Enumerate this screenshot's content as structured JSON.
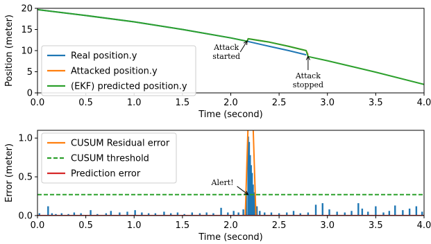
{
  "chart_data": [
    {
      "type": "line",
      "xlabel": "Time (second)",
      "ylabel": "Position (meter)",
      "xlim": [
        0.0,
        4.0
      ],
      "ylim": [
        0,
        20
      ],
      "x_ticks": [
        "0.0",
        "0.5",
        "1.0",
        "1.5",
        "2.0",
        "2.5",
        "3.0",
        "3.5",
        "4.0"
      ],
      "y_ticks": [
        "0",
        "5",
        "10",
        "15",
        "20"
      ],
      "grid": false,
      "legend_position": "lower-left",
      "series": [
        {
          "name": "Real position.y",
          "color": "#1f77b4",
          "x": [
            0.0,
            0.5,
            1.0,
            1.5,
            2.0,
            2.17,
            2.4,
            2.6,
            2.78
          ],
          "y": [
            19.7,
            18.3,
            16.8,
            15.0,
            13.0,
            12.2,
            11.0,
            10.0,
            9.0
          ]
        },
        {
          "name": "Attacked position.y",
          "color": "#ff7f0e",
          "x": [
            2.17,
            2.18,
            2.4,
            2.6,
            2.78,
            2.8
          ],
          "y": [
            12.2,
            12.8,
            12.0,
            11.0,
            10.0,
            9.0
          ]
        },
        {
          "name": "(EKF) predicted position.y",
          "color": "#2ca02c",
          "x": [
            0.0,
            0.5,
            1.0,
            1.5,
            2.0,
            2.17,
            2.18,
            2.4,
            2.6,
            2.78,
            2.8,
            3.0,
            3.5,
            4.0
          ],
          "y": [
            19.7,
            18.3,
            16.8,
            15.0,
            13.0,
            12.2,
            12.8,
            12.0,
            11.0,
            10.0,
            8.6,
            7.6,
            4.9,
            2.0
          ]
        }
      ],
      "annotations": [
        {
          "lines": [
            "Attack",
            "started"
          ],
          "x": 2.17,
          "y": 12.3
        },
        {
          "lines": [
            "Attack",
            "stopped"
          ],
          "x": 2.8,
          "y": 9.0
        }
      ]
    },
    {
      "type": "line",
      "xlabel": "Time (second)",
      "ylabel": "Error (meter)",
      "xlim": [
        0.0,
        4.0
      ],
      "ylim": [
        0,
        1.1
      ],
      "x_ticks": [
        "0.0",
        "0.5",
        "1.0",
        "1.5",
        "2.0",
        "2.5",
        "3.0",
        "3.5",
        "4.0"
      ],
      "y_ticks": [
        "0.0",
        "0.5",
        "1.0"
      ],
      "grid": false,
      "legend_position": "upper-left",
      "series": [
        {
          "name": "CUSUM Residual error",
          "color": "#ff7f0e",
          "x": [
            0.0,
            2.15,
            2.18,
            2.23,
            2.26,
            2.3,
            4.0
          ],
          "y": [
            0.0,
            0.0,
            1.2,
            1.2,
            0.0,
            0.0,
            0.0
          ]
        },
        {
          "name": "CUSUM threshold",
          "color": "#2ca02c",
          "style": "dashed",
          "x": [
            0.0,
            4.0
          ],
          "y": [
            0.27,
            0.27
          ]
        },
        {
          "name": "Prediction error",
          "color": "#d62728",
          "x": [
            0.0,
            4.0
          ],
          "y": [
            0.0,
            0.0
          ]
        }
      ],
      "error_bars": {
        "color": "#1f77b4",
        "x": [
          0.02,
          0.11,
          0.15,
          0.19,
          0.25,
          0.32,
          0.38,
          0.45,
          0.55,
          0.62,
          0.71,
          0.76,
          0.85,
          0.93,
          1.01,
          1.08,
          1.15,
          1.22,
          1.31,
          1.38,
          1.45,
          1.52,
          1.6,
          1.68,
          1.75,
          1.82,
          1.9,
          1.97,
          2.03,
          2.08,
          2.13,
          2.16,
          2.18,
          2.19,
          2.2,
          2.21,
          2.22,
          2.23,
          2.24,
          2.25,
          2.27,
          2.3,
          2.35,
          2.42,
          2.5,
          2.58,
          2.65,
          2.72,
          2.8,
          2.88,
          2.95,
          3.02,
          3.1,
          3.18,
          3.25,
          3.32,
          3.36,
          3.42,
          3.5,
          3.58,
          3.64,
          3.7,
          3.78,
          3.85,
          3.92,
          3.98
        ],
        "y": [
          0.03,
          0.12,
          0.03,
          0.02,
          0.03,
          0.02,
          0.04,
          0.03,
          0.07,
          0.02,
          0.03,
          0.06,
          0.04,
          0.05,
          0.07,
          0.04,
          0.03,
          0.03,
          0.05,
          0.03,
          0.04,
          0.02,
          0.04,
          0.03,
          0.04,
          0.03,
          0.1,
          0.04,
          0.06,
          0.04,
          0.08,
          0.3,
          1.02,
          0.95,
          0.78,
          0.65,
          0.55,
          0.4,
          0.3,
          0.2,
          0.12,
          0.06,
          0.04,
          0.04,
          0.03,
          0.04,
          0.06,
          0.03,
          0.04,
          0.14,
          0.16,
          0.08,
          0.05,
          0.04,
          0.06,
          0.16,
          0.09,
          0.05,
          0.12,
          0.04,
          0.06,
          0.13,
          0.07,
          0.09,
          0.12,
          0.05
        ]
      },
      "annotations": [
        {
          "lines": [
            "Alert!"
          ],
          "x": 2.18,
          "y": 0.27
        }
      ]
    }
  ]
}
